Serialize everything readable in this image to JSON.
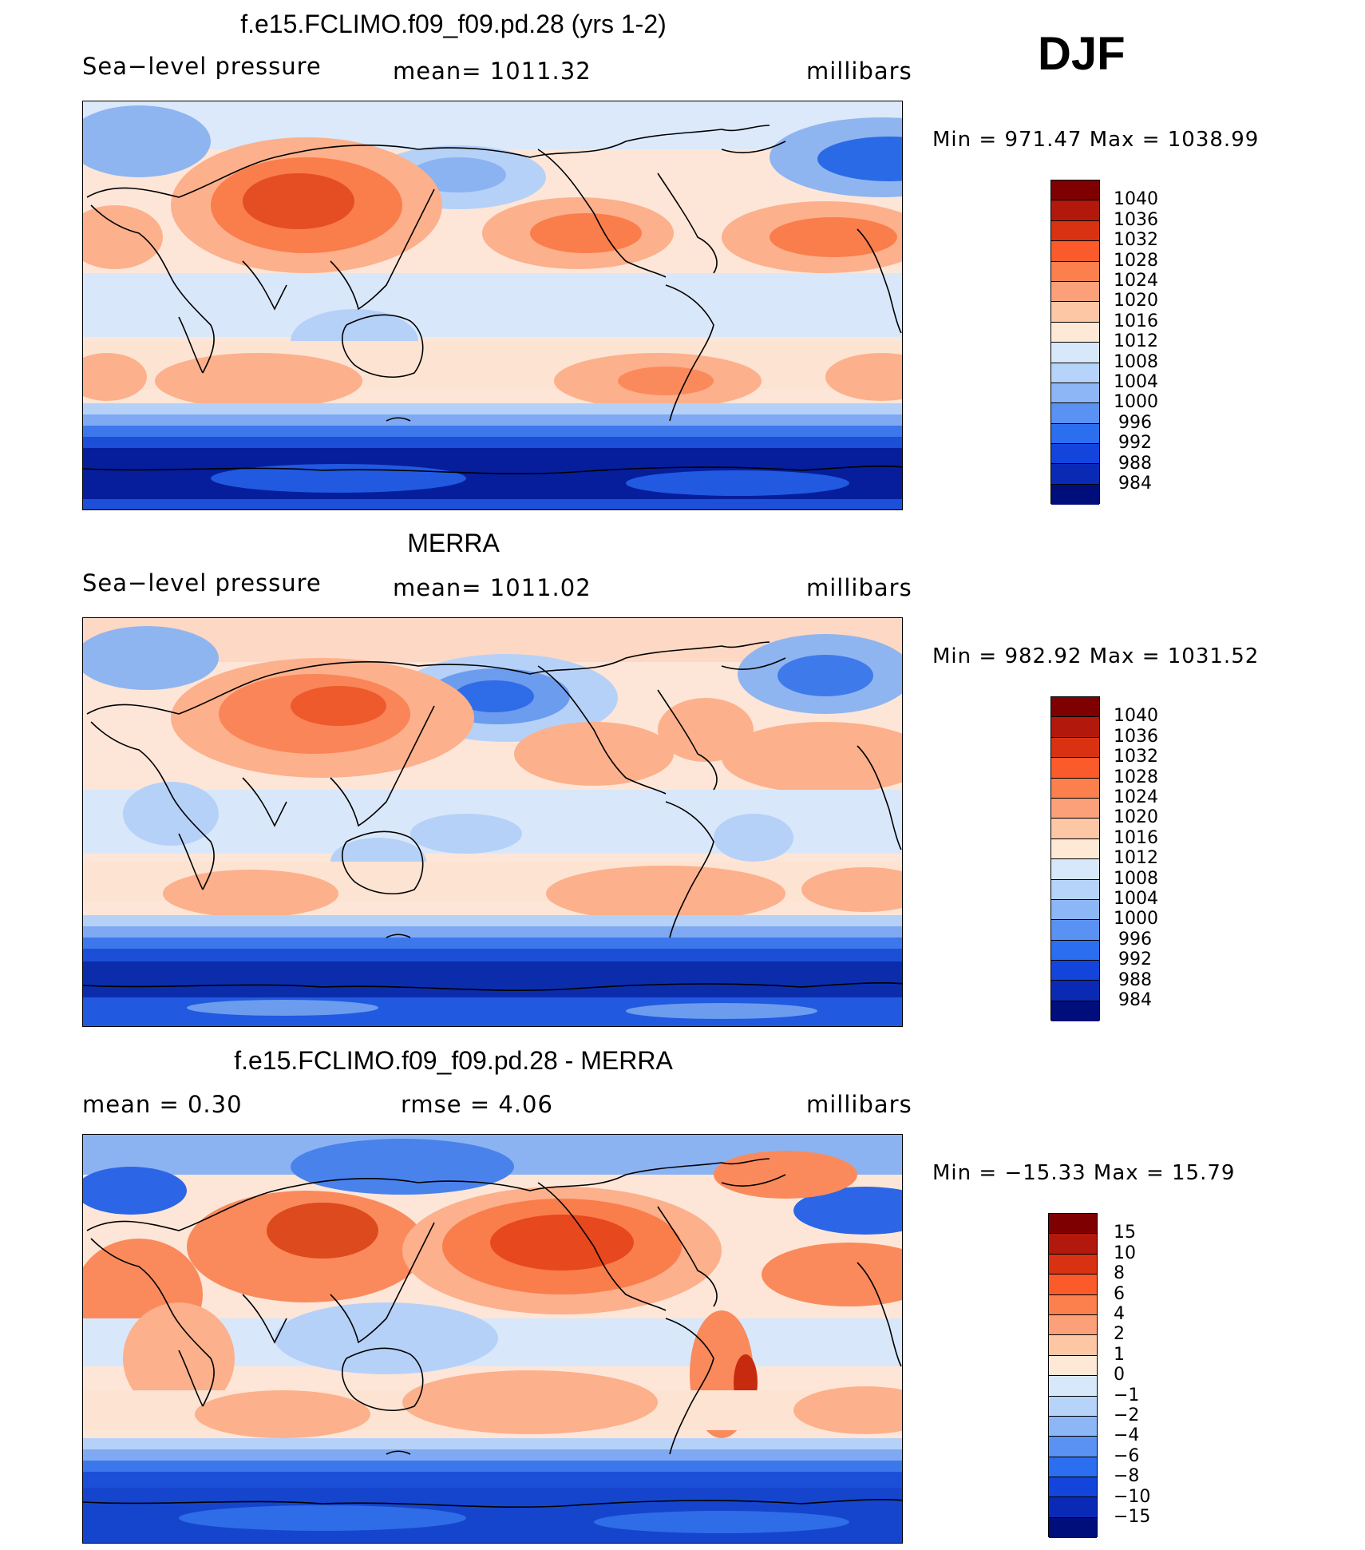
{
  "season": "DJF",
  "panels": [
    {
      "id": "model",
      "title": "f.e15.FCLIMO.f09_f09.pd.28 (yrs 1-2)",
      "left_label": "Sea−level pressure",
      "center_label": "mean=  1011.32",
      "units": "millibars",
      "minmax": "Min  =  971.47  Max  =  1038.99",
      "colorbar_labels": [
        "1040",
        "1036",
        "1032",
        "1028",
        "1024",
        "1020",
        "1016",
        "1012",
        "1008",
        "1004",
        "1000",
        "996",
        "992",
        "988",
        "984"
      ]
    },
    {
      "id": "obs",
      "title": "MERRA",
      "left_label": "Sea−level pressure",
      "center_label": "mean=  1011.02",
      "units": "millibars",
      "minmax": "Min  =  982.92  Max  =  1031.52",
      "colorbar_labels": [
        "1040",
        "1036",
        "1032",
        "1028",
        "1024",
        "1020",
        "1016",
        "1012",
        "1008",
        "1004",
        "1000",
        "996",
        "992",
        "988",
        "984"
      ]
    },
    {
      "id": "diff",
      "title": "f.e15.FCLIMO.f09_f09.pd.28 - MERRA",
      "left_label": "mean  =      0.30",
      "center_label": "rmse  =      4.06",
      "units": "millibars",
      "minmax": "Min  =  −15.33  Max  =     15.79",
      "colorbar_labels": [
        "15",
        "10",
        "8",
        "6",
        "4",
        "2",
        "1",
        "0",
        "−1",
        "−2",
        "−4",
        "−6",
        "−8",
        "−10",
        "−15"
      ]
    }
  ],
  "colors": {
    "scale": [
      "#67000d",
      "#a50f15",
      "#cb181d",
      "#ef3b2c",
      "#fb6a4a",
      "#fc9272",
      "#fcbba1",
      "#fee0d2",
      "#deebf7",
      "#c6dbef",
      "#9ecae1",
      "#6baed6",
      "#4292c6",
      "#2171b5",
      "#084594",
      "#08306b"
    ],
    "cbar": [
      "#7f0000",
      "#b2180b",
      "#d93212",
      "#fb5a2a",
      "#fc7f4e",
      "#fca07a",
      "#fdc7a6",
      "#fee9d6",
      "#d7e8fb",
      "#b6d3fa",
      "#8cb6f6",
      "#5a92f3",
      "#2c6ef0",
      "#1345dc",
      "#0a2ab6",
      "#000e7c"
    ]
  }
}
